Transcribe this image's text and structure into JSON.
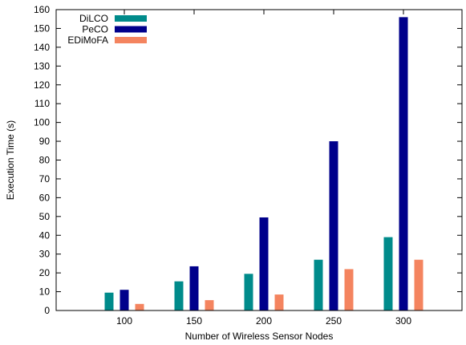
{
  "chart_data": {
    "type": "bar",
    "title": "",
    "xlabel": "Number of Wireless Sensor Nodes",
    "ylabel": "Execution Time (s)",
    "categories": [
      "100",
      "150",
      "200",
      "250",
      "300"
    ],
    "series": [
      {
        "name": "DiLCO",
        "color": "#008b8b",
        "values": [
          9.5,
          15.5,
          19.5,
          27,
          39
        ]
      },
      {
        "name": "PeCO",
        "color": "#00008b",
        "values": [
          11,
          23.5,
          49.5,
          90,
          156
        ]
      },
      {
        "name": "EDiMoFA",
        "color": "#f4845f",
        "values": [
          3.5,
          5.5,
          8.5,
          22,
          27
        ]
      }
    ],
    "ylim": [
      0,
      160
    ],
    "yticks": [
      0,
      10,
      20,
      30,
      40,
      50,
      60,
      70,
      80,
      90,
      100,
      110,
      120,
      130,
      140,
      150,
      160
    ],
    "grid": false,
    "legend_position": "top-left"
  }
}
